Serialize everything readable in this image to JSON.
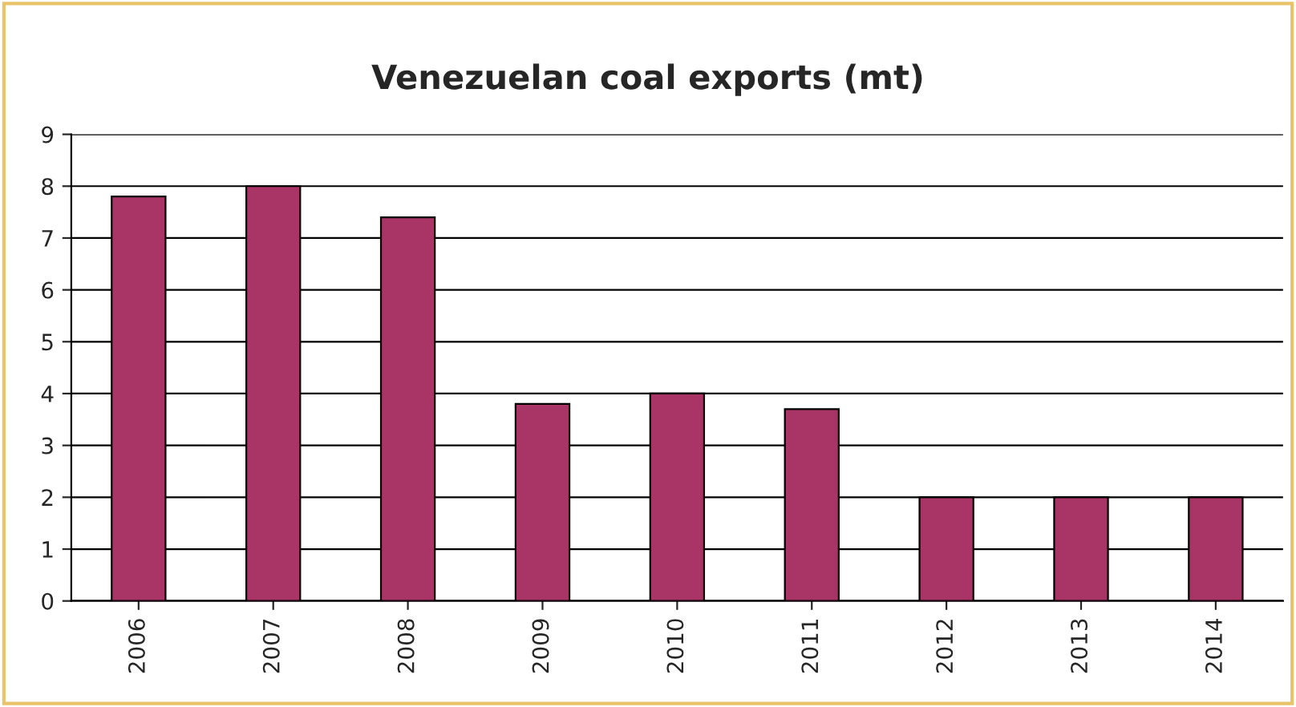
{
  "chart_data": {
    "type": "bar",
    "title": "Venezuelan coal exports (mt)",
    "categories": [
      "2006",
      "2007",
      "2008",
      "2009",
      "2010",
      "2011",
      "2012",
      "2013",
      "2014"
    ],
    "values": [
      7.8,
      8.0,
      7.4,
      3.8,
      4.0,
      3.7,
      2.0,
      2.0,
      2.0
    ],
    "color": "#a93466",
    "ylim": [
      0,
      9
    ],
    "yticks": [
      0,
      1,
      2,
      3,
      4,
      5,
      6,
      7,
      8,
      9
    ],
    "grid": "y",
    "legend": false
  }
}
